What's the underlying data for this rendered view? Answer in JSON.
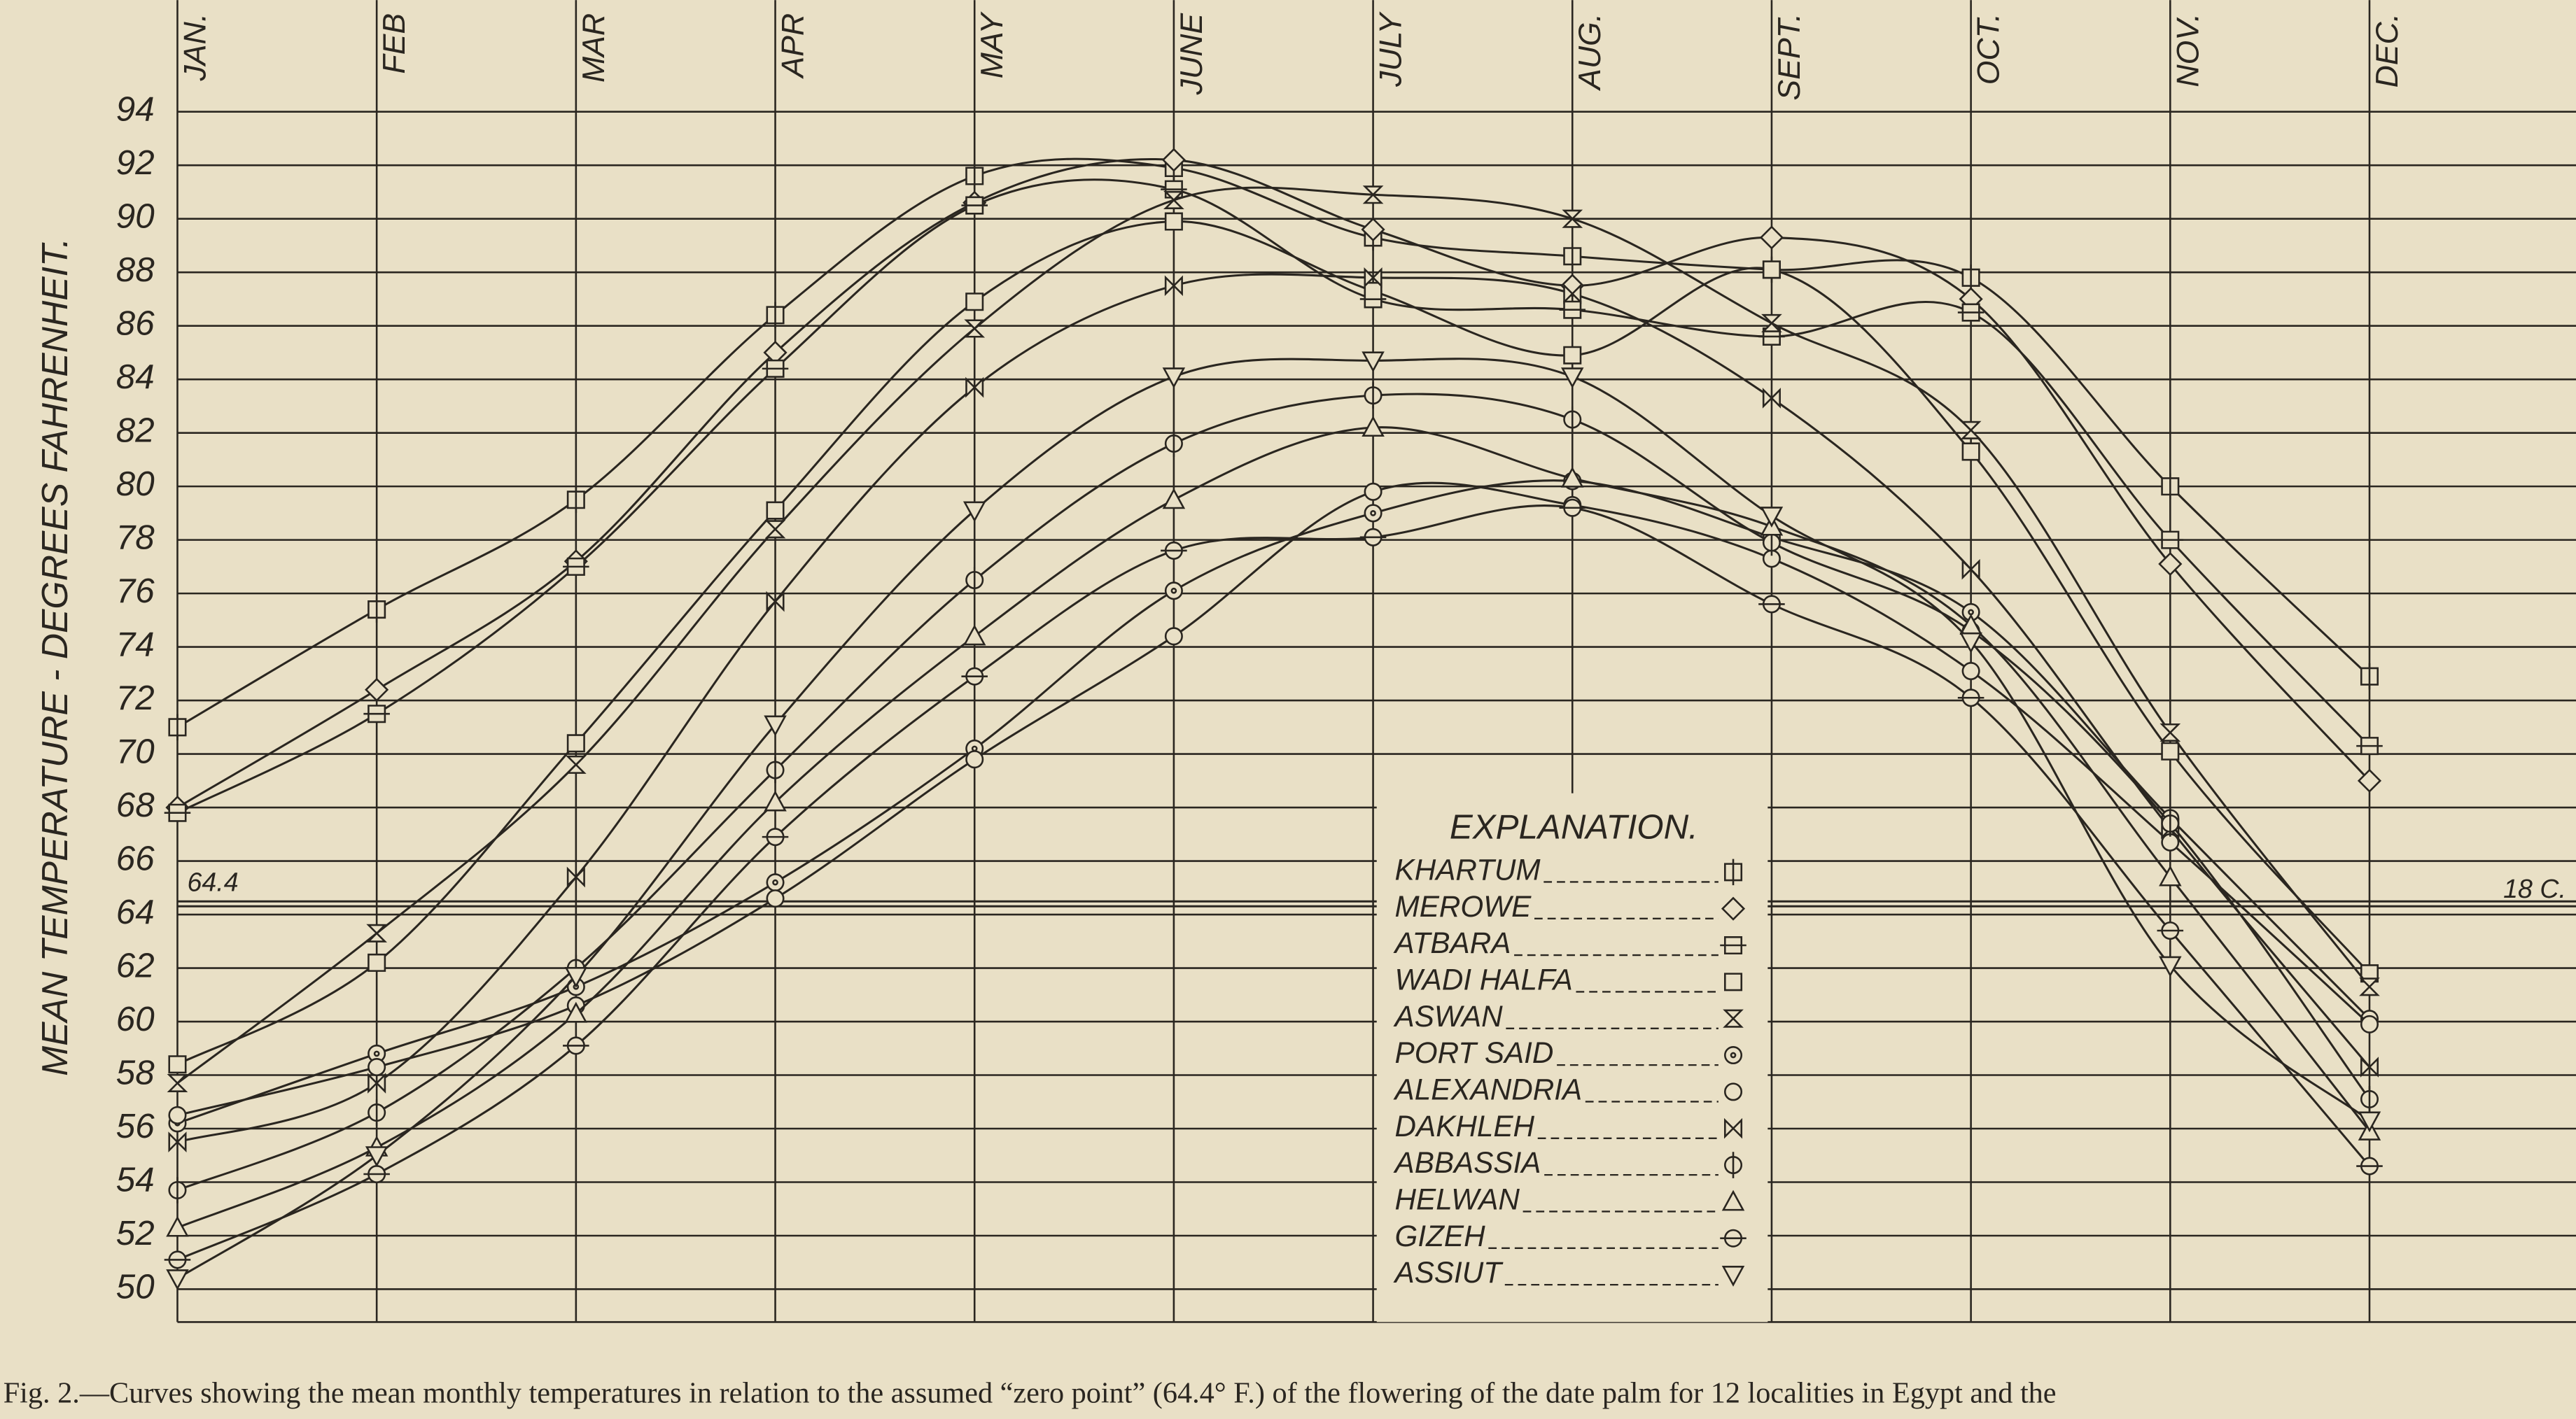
{
  "chart_data": {
    "type": "line",
    "y_label": "MEAN TEMPERATURE - DEGREES FAHRENHEIT.",
    "caption": "Fig. 2.—Curves showing the mean monthly temperatures in relation to the assumed “zero point” (64.4° F.) of the flowering of the date palm for 12 localities in Egypt and the",
    "categories": [
      "JAN.",
      "FEB",
      "MAR",
      "APR",
      "MAY",
      "JUNE",
      "JULY",
      "AUG.",
      "SEPT.",
      "OCT.",
      "NOV.",
      "DEC."
    ],
    "ylim": [
      50,
      94
    ],
    "yticks": [
      50,
      52,
      54,
      56,
      58,
      60,
      62,
      64,
      66,
      68,
      70,
      72,
      74,
      76,
      78,
      80,
      82,
      84,
      86,
      88,
      90,
      92,
      94
    ],
    "grid": true,
    "reference_line": {
      "value": 64.4,
      "label": "18 C."
    },
    "legend_title": "EXPLANATION.",
    "series": [
      {
        "name": "KHARTUM",
        "marker": "square-vline",
        "color": "#2a2620",
        "values": [
          71,
          75.4,
          79.5,
          86.4,
          91.6,
          91.9,
          89.3,
          88.6,
          88.1,
          87.8,
          80,
          72.9
        ]
      },
      {
        "name": "MEROWE",
        "marker": "diamond",
        "color": "#2a2620",
        "values": [
          68,
          72.4,
          77.2,
          85,
          90.6,
          92.2,
          89.6,
          87.5,
          89.3,
          87,
          77.1,
          69
        ]
      },
      {
        "name": "ATBARA",
        "marker": "square-hline",
        "color": "#2a2620",
        "values": [
          67.8,
          71.5,
          77,
          84.4,
          90.5,
          91.1,
          87,
          86.6,
          85.6,
          86.5,
          78,
          70.3
        ]
      },
      {
        "name": "WADI HALFA",
        "marker": "square",
        "color": "#2a2620",
        "values": [
          58.4,
          62.2,
          70.4,
          79.1,
          86.9,
          89.9,
          87.3,
          84.9,
          88.1,
          81.3,
          70.1,
          61.8
        ]
      },
      {
        "name": "ASWAN",
        "marker": "hourglass",
        "color": "#2a2620",
        "values": [
          57.7,
          63.3,
          69.6,
          78.4,
          85.9,
          90.7,
          90.9,
          90,
          86.1,
          82.1,
          70.8,
          61.3
        ]
      },
      {
        "name": "PORT SAID",
        "marker": "circle-dot",
        "color": "#2a2620",
        "values": [
          56.2,
          58.8,
          61.3,
          65.2,
          70.2,
          76.1,
          79,
          80.2,
          78.1,
          75.3,
          67.6,
          60.1
        ]
      },
      {
        "name": "ALEXANDRIA",
        "marker": "circle",
        "color": "#2a2620",
        "values": [
          56.5,
          58.3,
          60.6,
          64.6,
          69.8,
          74.4,
          79.8,
          79.3,
          77.3,
          73.1,
          66.7,
          59.9
        ]
      },
      {
        "name": "DAKHLEH",
        "marker": "bowtie",
        "color": "#2a2620",
        "values": [
          55.5,
          57.7,
          65.4,
          75.7,
          83.7,
          87.5,
          87.8,
          87.2,
          83.3,
          76.9,
          67.2,
          58.3
        ]
      },
      {
        "name": "ABBASSIA",
        "marker": "circle-vline",
        "color": "#2a2620",
        "values": [
          53.7,
          56.6,
          62,
          69.4,
          76.5,
          81.6,
          83.4,
          82.5,
          77.9,
          74.6,
          67.4,
          57.1
        ]
      },
      {
        "name": "HELWAN",
        "marker": "triangle",
        "color": "#2a2620",
        "values": [
          52.3,
          55.3,
          60.3,
          68.2,
          74.4,
          79.5,
          82.2,
          80.3,
          78.5,
          74.8,
          65.4,
          55.9
        ]
      },
      {
        "name": "GIZEH",
        "marker": "circle-hline",
        "color": "#2a2620",
        "values": [
          51.1,
          54.3,
          59.1,
          66.9,
          72.9,
          77.6,
          78.1,
          79.2,
          75.6,
          72.1,
          63.4,
          54.6
        ]
      },
      {
        "name": "ASSIUT",
        "marker": "triangle-down",
        "color": "#2a2620",
        "values": [
          50.4,
          55,
          61.7,
          71.1,
          79.1,
          84.1,
          84.7,
          84.1,
          78.9,
          74.2,
          62.1,
          56.3
        ]
      }
    ]
  }
}
